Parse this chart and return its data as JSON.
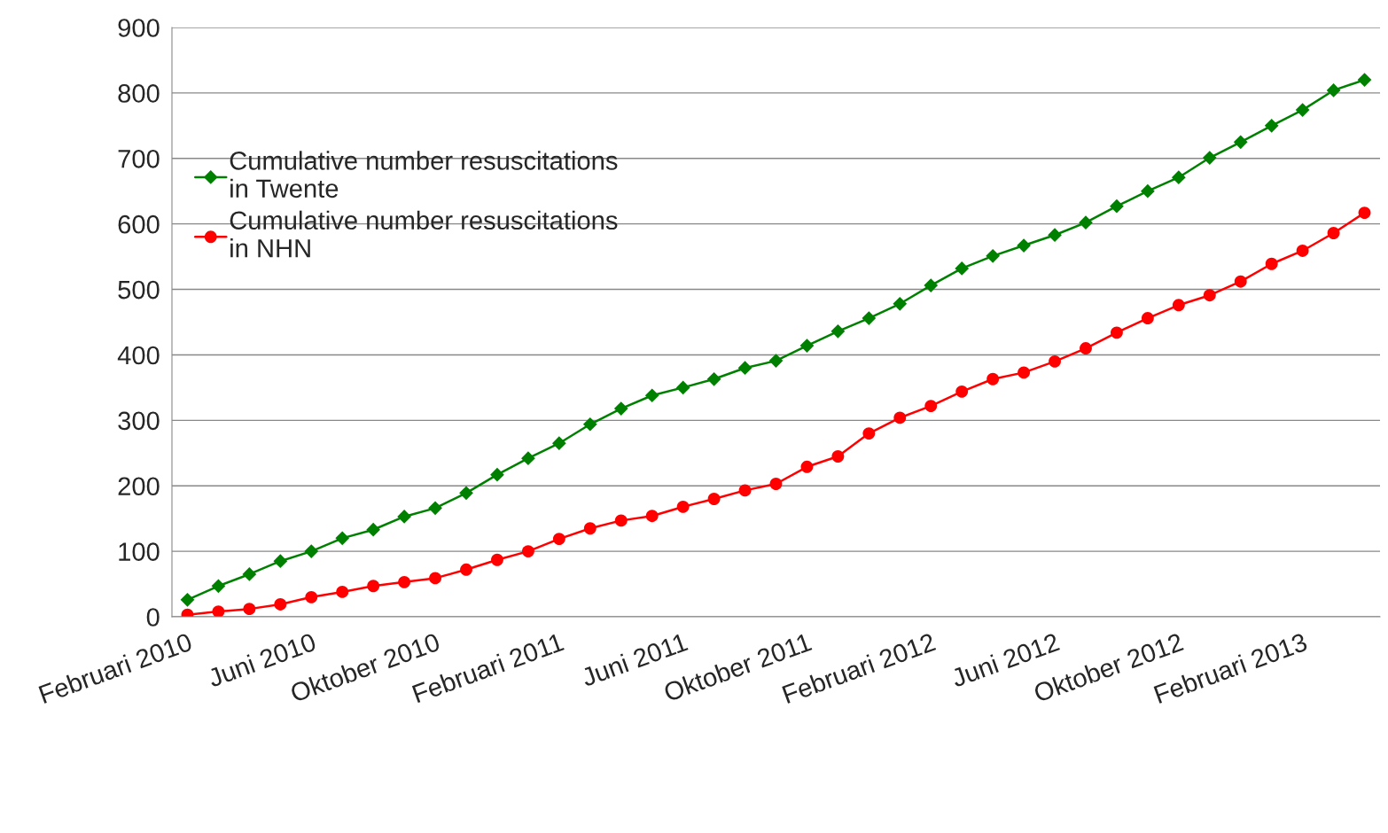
{
  "chart_data": {
    "type": "line",
    "categories": [
      "Februari 2010",
      null,
      null,
      null,
      "Juni 2010",
      null,
      null,
      null,
      "Oktober 2010",
      null,
      null,
      null,
      "Februari 2011",
      null,
      null,
      null,
      "Juni 2011",
      null,
      null,
      null,
      "Oktober 2011",
      null,
      null,
      null,
      "Februari 2012",
      null,
      null,
      null,
      "Juni 2012",
      null,
      null,
      null,
      "Oktober 2012",
      null,
      null,
      null,
      "Februari 2013",
      null,
      null
    ],
    "series": [
      {
        "name": "Cumulative number resuscitations\nin Twente",
        "color": "#008000",
        "marker": "diamond",
        "values": [
          26,
          47,
          65,
          85,
          100,
          120,
          133,
          153,
          166,
          189,
          217,
          242,
          265,
          294,
          318,
          338,
          350,
          363,
          380,
          391,
          414,
          436,
          456,
          478,
          506,
          532,
          551,
          567,
          583,
          602,
          627,
          650,
          671,
          701,
          725,
          750,
          774,
          804,
          820
        ]
      },
      {
        "name": "Cumulative number resuscitations\nin NHN",
        "color": "#ff0000",
        "marker": "circle",
        "values": [
          3,
          8,
          12,
          19,
          30,
          38,
          47,
          53,
          59,
          72,
          87,
          100,
          119,
          135,
          147,
          154,
          168,
          180,
          193,
          203,
          229,
          245,
          280,
          304,
          322,
          344,
          363,
          373,
          390,
          410,
          434,
          456,
          476,
          491,
          512,
          539,
          559,
          586,
          617
        ]
      }
    ],
    "ylim": [
      0,
      900
    ],
    "yticks": [
      0,
      100,
      200,
      300,
      400,
      500,
      600,
      700,
      800,
      900
    ],
    "grid": "y",
    "legend": "top left",
    "line_style": "solid"
  }
}
